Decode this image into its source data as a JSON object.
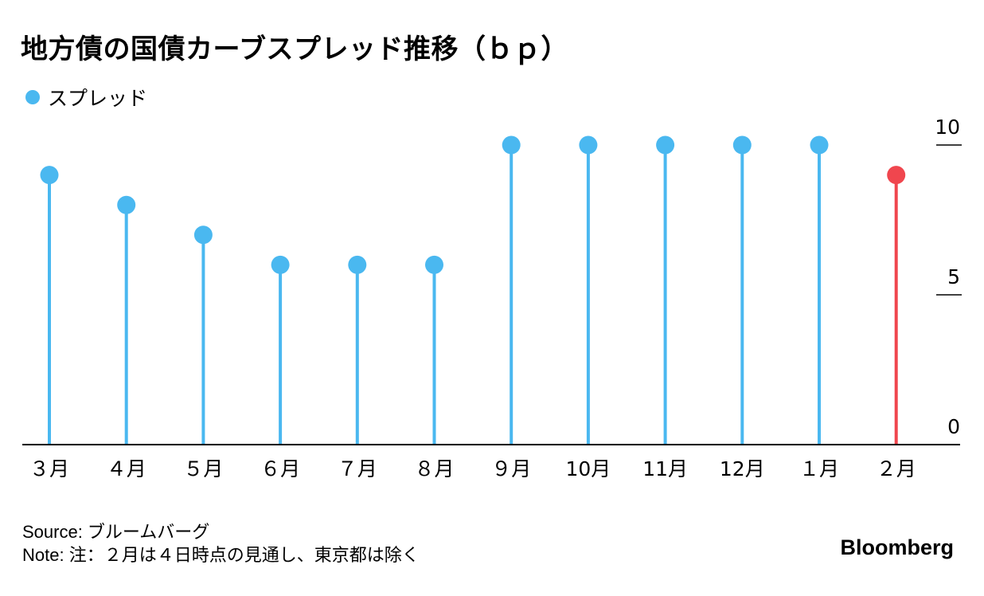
{
  "title": "地方債の国債カーブスプレッド推移（ｂｐ）",
  "legend": {
    "label": "スプレッド"
  },
  "colors": {
    "series": "#4ab8f0",
    "highlight": "#f0464e",
    "axis": "#000000"
  },
  "chart_data": {
    "type": "lollipop",
    "categories": [
      "３月",
      "４月",
      "５月",
      "６月",
      "７月",
      "８月",
      "９月",
      "10月",
      "11月",
      "12月",
      "１月",
      "２月"
    ],
    "series": [
      {
        "name": "スプレッド",
        "values": [
          9,
          8,
          7,
          6,
          6,
          6,
          10,
          10,
          10,
          10,
          10,
          9
        ]
      }
    ],
    "highlight_index": 11,
    "ylim": [
      0,
      10
    ],
    "yticks": [
      0,
      5,
      10
    ],
    "ytick_labels": [
      "0",
      "5",
      "10"
    ],
    "y_axis_position": "right",
    "grid": false
  },
  "footer": {
    "source": "Source: ブルームバーグ",
    "note": "Note: 注：２月は４日時点の見通し、東京都は除く",
    "brand": "Bloomberg"
  }
}
